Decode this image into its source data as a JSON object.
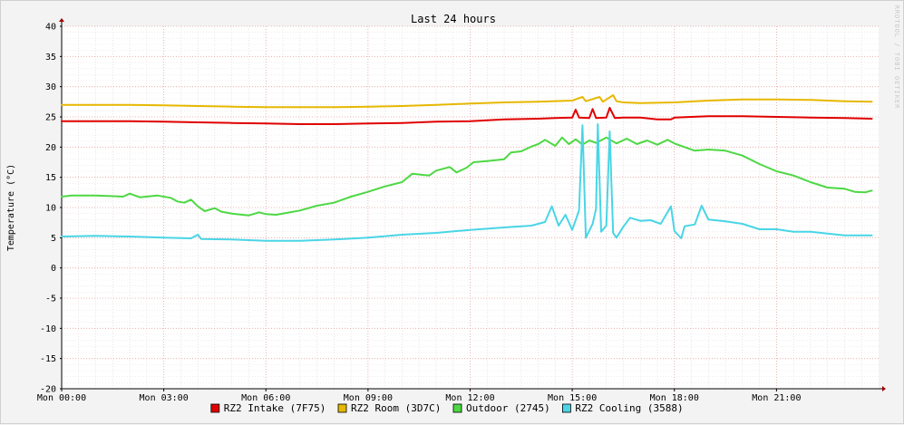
{
  "chart_data": {
    "type": "line",
    "title": "Last 24 hours",
    "ylabel": "Temperature (°C)",
    "xlabel": "",
    "watermark": "RRDTOOL / TOBI OETIKER",
    "ylim": [
      -20,
      40
    ],
    "y_ticks": [
      -20,
      -15,
      -10,
      -5,
      0,
      5,
      10,
      15,
      20,
      25,
      30,
      35,
      40
    ],
    "x_range_hours": [
      0,
      24
    ],
    "x_ticks": [
      {
        "hour": 0,
        "label": "Mon 00:00"
      },
      {
        "hour": 3,
        "label": "Mon 03:00"
      },
      {
        "hour": 6,
        "label": "Mon 06:00"
      },
      {
        "hour": 9,
        "label": "Mon 09:00"
      },
      {
        "hour": 12,
        "label": "Mon 12:00"
      },
      {
        "hour": 15,
        "label": "Mon 15:00"
      },
      {
        "hour": 18,
        "label": "Mon 18:00"
      },
      {
        "hour": 21,
        "label": "Mon 21:00"
      }
    ],
    "grid": true,
    "legend_position": "bottom",
    "series": [
      {
        "name": "RZ2 Intake (7F75)",
        "color": "#e00000",
        "points": [
          [
            0,
            24.3
          ],
          [
            1,
            24.3
          ],
          [
            2,
            24.3
          ],
          [
            3,
            24.2
          ],
          [
            4,
            24.1
          ],
          [
            5,
            24.0
          ],
          [
            6,
            23.9
          ],
          [
            7,
            23.8
          ],
          [
            8,
            23.8
          ],
          [
            9,
            23.9
          ],
          [
            10,
            24.0
          ],
          [
            11,
            24.2
          ],
          [
            12,
            24.3
          ],
          [
            13,
            24.6
          ],
          [
            14,
            24.7
          ],
          [
            14.5,
            24.8
          ],
          [
            15.0,
            24.9
          ],
          [
            15.1,
            26.2
          ],
          [
            15.2,
            24.9
          ],
          [
            15.5,
            24.8
          ],
          [
            15.6,
            26.3
          ],
          [
            15.7,
            24.8
          ],
          [
            16.0,
            24.9
          ],
          [
            16.1,
            26.5
          ],
          [
            16.25,
            24.8
          ],
          [
            16.5,
            24.9
          ],
          [
            17,
            24.9
          ],
          [
            17.5,
            24.6
          ],
          [
            17.9,
            24.6
          ],
          [
            18,
            24.9
          ],
          [
            18.5,
            25.0
          ],
          [
            19,
            25.1
          ],
          [
            20,
            25.1
          ],
          [
            21,
            25.0
          ],
          [
            22,
            24.9
          ],
          [
            23,
            24.8
          ],
          [
            23.8,
            24.7
          ]
        ]
      },
      {
        "name": "RZ2 Room (3D7C)",
        "color": "#e6b800",
        "points": [
          [
            0,
            27.0
          ],
          [
            1,
            27.0
          ],
          [
            2,
            27.0
          ],
          [
            3,
            26.9
          ],
          [
            4,
            26.8
          ],
          [
            5,
            26.7
          ],
          [
            6,
            26.6
          ],
          [
            7,
            26.6
          ],
          [
            8,
            26.6
          ],
          [
            9,
            26.7
          ],
          [
            10,
            26.8
          ],
          [
            11,
            27.0
          ],
          [
            12,
            27.2
          ],
          [
            13,
            27.4
          ],
          [
            14,
            27.5
          ],
          [
            15.0,
            27.7
          ],
          [
            15.3,
            28.3
          ],
          [
            15.4,
            27.6
          ],
          [
            15.8,
            28.3
          ],
          [
            15.9,
            27.5
          ],
          [
            16.2,
            28.6
          ],
          [
            16.3,
            27.6
          ],
          [
            16.5,
            27.4
          ],
          [
            17,
            27.3
          ],
          [
            18,
            27.4
          ],
          [
            19,
            27.7
          ],
          [
            20,
            27.9
          ],
          [
            21,
            27.9
          ],
          [
            22,
            27.8
          ],
          [
            23,
            27.6
          ],
          [
            23.8,
            27.5
          ]
        ]
      },
      {
        "name": "Outdoor (2745)",
        "color": "#4dd843",
        "points": [
          [
            0,
            11.8
          ],
          [
            0.3,
            12.0
          ],
          [
            1,
            12.0
          ],
          [
            1.8,
            11.8
          ],
          [
            2.0,
            12.3
          ],
          [
            2.3,
            11.7
          ],
          [
            2.8,
            12.0
          ],
          [
            3.2,
            11.6
          ],
          [
            3.4,
            11.0
          ],
          [
            3.6,
            10.8
          ],
          [
            3.8,
            11.3
          ],
          [
            4.0,
            10.2
          ],
          [
            4.2,
            9.4
          ],
          [
            4.5,
            9.9
          ],
          [
            4.7,
            9.3
          ],
          [
            5.0,
            9.0
          ],
          [
            5.5,
            8.7
          ],
          [
            5.8,
            9.2
          ],
          [
            6.0,
            8.9
          ],
          [
            6.3,
            8.8
          ],
          [
            6.6,
            9.1
          ],
          [
            7.0,
            9.5
          ],
          [
            7.5,
            10.3
          ],
          [
            8.0,
            10.8
          ],
          [
            8.5,
            11.8
          ],
          [
            9.0,
            12.6
          ],
          [
            9.5,
            13.5
          ],
          [
            10.0,
            14.2
          ],
          [
            10.3,
            15.6
          ],
          [
            10.8,
            15.3
          ],
          [
            11.0,
            16.1
          ],
          [
            11.4,
            16.7
          ],
          [
            11.6,
            15.8
          ],
          [
            11.9,
            16.6
          ],
          [
            12.1,
            17.5
          ],
          [
            12.5,
            17.7
          ],
          [
            13.0,
            18.0
          ],
          [
            13.2,
            19.1
          ],
          [
            13.5,
            19.3
          ],
          [
            13.8,
            20.1
          ],
          [
            14.0,
            20.5
          ],
          [
            14.2,
            21.2
          ],
          [
            14.5,
            20.2
          ],
          [
            14.7,
            21.6
          ],
          [
            14.9,
            20.5
          ],
          [
            15.1,
            21.3
          ],
          [
            15.3,
            20.4
          ],
          [
            15.5,
            21.1
          ],
          [
            15.7,
            20.7
          ],
          [
            16.0,
            21.6
          ],
          [
            16.3,
            20.6
          ],
          [
            16.6,
            21.4
          ],
          [
            16.9,
            20.5
          ],
          [
            17.2,
            21.1
          ],
          [
            17.5,
            20.4
          ],
          [
            17.8,
            21.2
          ],
          [
            18.0,
            20.6
          ],
          [
            18.3,
            20.0
          ],
          [
            18.6,
            19.4
          ],
          [
            19.0,
            19.6
          ],
          [
            19.5,
            19.4
          ],
          [
            20.0,
            18.6
          ],
          [
            20.5,
            17.2
          ],
          [
            21.0,
            16.0
          ],
          [
            21.5,
            15.3
          ],
          [
            22.0,
            14.2
          ],
          [
            22.5,
            13.3
          ],
          [
            23.0,
            13.1
          ],
          [
            23.3,
            12.6
          ],
          [
            23.6,
            12.5
          ],
          [
            23.8,
            12.8
          ]
        ]
      },
      {
        "name": "RZ2 Cooling (3588)",
        "color": "#49d5e6",
        "points": [
          [
            0,
            5.2
          ],
          [
            1,
            5.3
          ],
          [
            2,
            5.2
          ],
          [
            3,
            5.0
          ],
          [
            3.8,
            4.9
          ],
          [
            4.0,
            5.5
          ],
          [
            4.1,
            4.8
          ],
          [
            5,
            4.7
          ],
          [
            6,
            4.5
          ],
          [
            7,
            4.5
          ],
          [
            8,
            4.7
          ],
          [
            9,
            5.0
          ],
          [
            10,
            5.5
          ],
          [
            11,
            5.8
          ],
          [
            12,
            6.3
          ],
          [
            13,
            6.7
          ],
          [
            13.8,
            7.0
          ],
          [
            14.2,
            7.6
          ],
          [
            14.4,
            10.2
          ],
          [
            14.6,
            7.0
          ],
          [
            14.8,
            8.8
          ],
          [
            15.0,
            6.3
          ],
          [
            15.2,
            9.5
          ],
          [
            15.3,
            23.6
          ],
          [
            15.4,
            5.0
          ],
          [
            15.6,
            7.3
          ],
          [
            15.7,
            9.8
          ],
          [
            15.75,
            23.8
          ],
          [
            15.85,
            6.0
          ],
          [
            16.0,
            7.0
          ],
          [
            16.1,
            22.6
          ],
          [
            16.2,
            5.8
          ],
          [
            16.3,
            5.0
          ],
          [
            16.5,
            6.8
          ],
          [
            16.7,
            8.3
          ],
          [
            17.0,
            7.8
          ],
          [
            17.3,
            7.9
          ],
          [
            17.6,
            7.3
          ],
          [
            17.9,
            10.2
          ],
          [
            18.0,
            6.1
          ],
          [
            18.2,
            4.9
          ],
          [
            18.3,
            6.9
          ],
          [
            18.6,
            7.2
          ],
          [
            18.8,
            10.3
          ],
          [
            19.0,
            8.0
          ],
          [
            19.5,
            7.7
          ],
          [
            20.0,
            7.3
          ],
          [
            20.5,
            6.4
          ],
          [
            21.0,
            6.4
          ],
          [
            21.5,
            6.0
          ],
          [
            22.0,
            6.0
          ],
          [
            22.5,
            5.7
          ],
          [
            23.0,
            5.4
          ],
          [
            23.8,
            5.4
          ]
        ]
      }
    ]
  }
}
